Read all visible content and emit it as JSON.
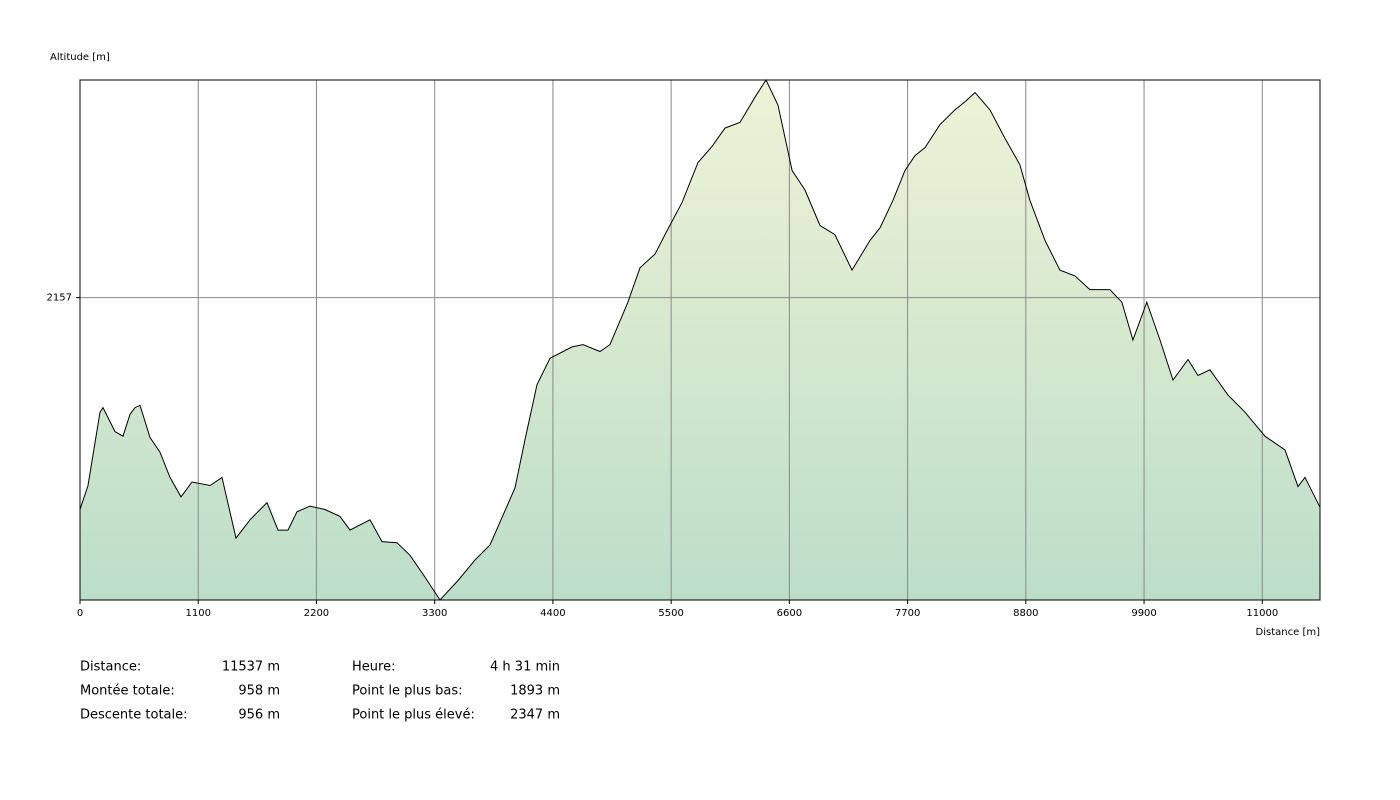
{
  "chart_data": {
    "type": "area",
    "ylabel": "Altitude [m]",
    "xlabel": "Distance [m]",
    "color": "#000000",
    "grid": true,
    "xlim": [
      0,
      11537
    ],
    "ylim": [
      1893,
      2347
    ],
    "xticks": [
      0,
      1100,
      2200,
      3300,
      4400,
      5500,
      6600,
      7700,
      8800,
      9900,
      11000
    ],
    "yticks": [
      2157
    ],
    "x": [
      0,
      74,
      186,
      214,
      326,
      400,
      465,
      512,
      558,
      651,
      744,
      837,
      940,
      1042,
      1210,
      1321,
      1451,
      1582,
      1740,
      1842,
      1935,
      2019,
      2140,
      2279,
      2419,
      2512,
      2698,
      2810,
      2949,
      3070,
      3210,
      3349,
      3517,
      3675,
      3815,
      4047,
      4140,
      4252,
      4373,
      4578,
      4680,
      4838,
      4931,
      5098,
      5210,
      5350,
      5443,
      5601,
      5750,
      5880,
      6001,
      6141,
      6280,
      6383,
      6494,
      6625,
      6745,
      6885,
      7024,
      7183,
      7350,
      7443,
      7564,
      7676,
      7769,
      7862,
      8001,
      8141,
      8234,
      8327,
      8466,
      8606,
      8745,
      8838,
      8978,
      9117,
      9257,
      9396,
      9582,
      9694,
      9796,
      9926,
      10048,
      10169,
      10309,
      10402,
      10513,
      10681,
      10839,
      11025,
      11211,
      11332,
      11397,
      11537
    ],
    "values": [
      1972,
      1993,
      2057,
      2061,
      2040,
      2036,
      2055,
      2061,
      2063,
      2035,
      2022,
      2000,
      1983,
      1996,
      1993,
      2000,
      1947,
      1963,
      1978,
      1954,
      1954,
      1970,
      1975,
      1972,
      1966,
      1954,
      1963,
      1944,
      1943,
      1932,
      1913,
      1893,
      1910,
      1928,
      1941,
      1991,
      2033,
      2081,
      2104,
      2114,
      2116,
      2110,
      2116,
      2153,
      2183,
      2195,
      2212,
      2240,
      2275,
      2289,
      2305,
      2310,
      2332,
      2347,
      2325,
      2268,
      2251,
      2220,
      2212,
      2181,
      2207,
      2218,
      2242,
      2268,
      2281,
      2288,
      2308,
      2321,
      2328,
      2336,
      2321,
      2296,
      2273,
      2242,
      2207,
      2181,
      2176,
      2164,
      2164,
      2153,
      2120,
      2153,
      2120,
      2085,
      2103,
      2089,
      2094,
      2072,
      2057,
      2036,
      2024,
      1992,
      2000,
      1974
    ]
  },
  "stats": {
    "left": [
      [
        "Distance:",
        "11537 m"
      ],
      [
        "Montée totale:",
        "958 m"
      ],
      [
        "Descente totale:",
        "956 m"
      ]
    ],
    "right": [
      [
        "Heure:",
        "4 h 31 min"
      ],
      [
        "Point le plus bas:",
        "1893 m"
      ],
      [
        "Point le plus élevé:",
        "2347 m"
      ]
    ]
  }
}
